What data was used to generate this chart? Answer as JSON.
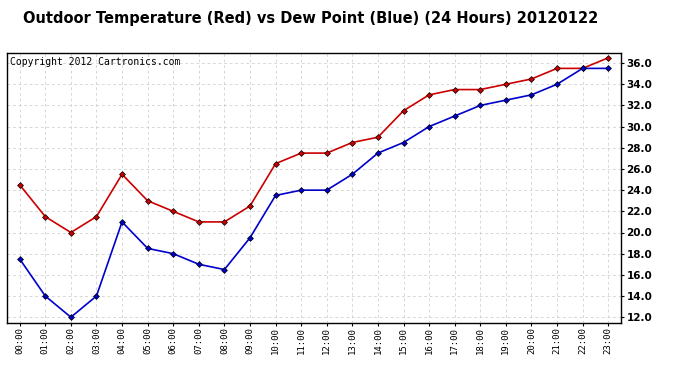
{
  "title": "Outdoor Temperature (Red) vs Dew Point (Blue) (24 Hours) 20120122",
  "copyright_text": "Copyright 2012 Cartronics.com",
  "hours": [
    "00:00",
    "01:00",
    "02:00",
    "03:00",
    "04:00",
    "05:00",
    "06:00",
    "07:00",
    "08:00",
    "09:00",
    "10:00",
    "11:00",
    "12:00",
    "13:00",
    "14:00",
    "15:00",
    "16:00",
    "17:00",
    "18:00",
    "19:00",
    "20:00",
    "21:00",
    "22:00",
    "23:00"
  ],
  "temp_red": [
    24.5,
    21.5,
    20.0,
    21.5,
    25.5,
    23.0,
    22.0,
    21.0,
    21.0,
    22.5,
    26.5,
    27.5,
    27.5,
    28.5,
    29.0,
    31.5,
    33.0,
    33.5,
    33.5,
    34.0,
    34.5,
    35.5,
    35.5,
    36.5
  ],
  "dew_blue": [
    17.5,
    14.0,
    12.0,
    14.0,
    21.0,
    18.5,
    18.0,
    17.0,
    16.5,
    19.5,
    23.5,
    24.0,
    24.0,
    25.5,
    27.5,
    28.5,
    30.0,
    31.0,
    32.0,
    32.5,
    33.0,
    34.0,
    35.5,
    35.5
  ],
  "red_color": "#cc0000",
  "blue_color": "#0000cc",
  "background_color": "#ffffff",
  "plot_bg_color": "#ffffff",
  "grid_color": "#c8c8c8",
  "ylim": [
    11.5,
    37.0
  ],
  "yticks": [
    12.0,
    14.0,
    16.0,
    18.0,
    20.0,
    22.0,
    24.0,
    26.0,
    28.0,
    30.0,
    32.0,
    34.0,
    36.0
  ],
  "title_fontsize": 10.5,
  "copyright_fontsize": 7,
  "marker": "D",
  "markersize": 3,
  "linewidth": 1.2
}
